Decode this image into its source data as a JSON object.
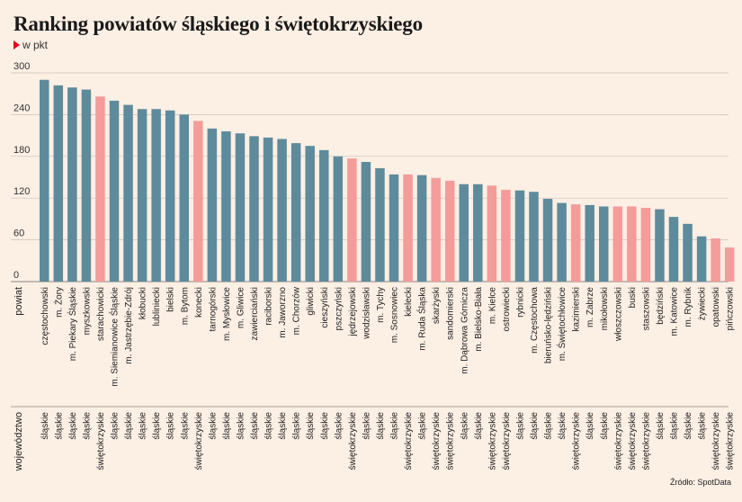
{
  "title": "Ranking powiatów śląskiego i świętokrzyskiego",
  "unit_label": "w pkt",
  "source": "Źródło: SpotData",
  "row_labels": {
    "powiat": "powiat",
    "wojewodztwo": "województwo"
  },
  "colors": {
    "slaskie": "#5e8b9c",
    "swietokrzyskie": "#f39c9a",
    "background": "#fcefe4",
    "grid": "#c8c2bb",
    "marker": "#e0001b"
  },
  "chart_data": {
    "type": "bar",
    "yticks": [
      0,
      60,
      120,
      180,
      240,
      300
    ],
    "ylim": [
      0,
      300
    ],
    "grid": true,
    "categories": [
      "częstochowski",
      "m. Żory",
      "m. Piekary Śląskie",
      "myszkowski",
      "starachowicki",
      "m. Siemianowice Śląskie",
      "m. Jastrzębie-Zdrój",
      "kłobucki",
      "lubliniecki",
      "bielski",
      "m. Bytom",
      "konecki",
      "tarnogórski",
      "m. Mysłowice",
      "m. Gliwice",
      "zawierciański",
      "raciborski",
      "m. Jaworzno",
      "m. Chorzów",
      "gliwicki",
      "cieszyński",
      "pszczyński",
      "jędrzejowski",
      "wodzisławski",
      "m. Tychy",
      "m. Sosnowiec",
      "kielecki",
      "m. Ruda Śląska",
      "skarżyski",
      "sandomierski",
      "m. Dąbrowa Górnicza",
      "m. Bielsko-Biała",
      "m. Kielce",
      "ostrowiecki",
      "rybnicki",
      "m. Częstochowa",
      "bieruńsko-lędziński",
      "m. Świętochłowice",
      "kazimierski",
      "m. Zabrze",
      "mikołowski",
      "włoszczowski",
      "buski",
      "staszowski",
      "będziński",
      "m. Katowice",
      "m. Rybnik",
      "żywiecki",
      "opatowski",
      "pińczowski"
    ],
    "values": [
      290,
      282,
      279,
      276,
      266,
      260,
      254,
      248,
      248,
      246,
      240,
      231,
      220,
      216,
      213,
      209,
      207,
      205,
      199,
      195,
      189,
      180,
      177,
      172,
      163,
      154,
      154,
      153,
      149,
      145,
      140,
      140,
      138,
      132,
      131,
      129,
      119,
      113,
      111,
      110,
      108,
      108,
      108,
      106,
      104,
      93,
      83,
      65,
      62,
      49
    ],
    "voivodeship": [
      "śląskie",
      "śląskie",
      "śląskie",
      "śląskie",
      "świętokrzyskie",
      "śląskie",
      "śląskie",
      "śląskie",
      "śląskie",
      "śląskie",
      "śląskie",
      "świętokrzyskie",
      "śląskie",
      "śląskie",
      "śląskie",
      "śląskie",
      "śląskie",
      "śląskie",
      "śląskie",
      "śląskie",
      "śląskie",
      "śląskie",
      "świętokrzyskie",
      "śląskie",
      "śląskie",
      "śląskie",
      "świętokrzyskie",
      "śląskie",
      "świętokrzyskie",
      "świętokrzyskie",
      "śląskie",
      "śląskie",
      "świętokrzyskie",
      "świętokrzyskie",
      "śląskie",
      "śląskie",
      "śląskie",
      "śląskie",
      "świętokrzyskie",
      "śląskie",
      "śląskie",
      "świętokrzyskie",
      "świętokrzyskie",
      "świętokrzyskie",
      "śląskie",
      "śląskie",
      "śląskie",
      "śląskie",
      "świętokrzyskie",
      "świętokrzyskie"
    ]
  }
}
